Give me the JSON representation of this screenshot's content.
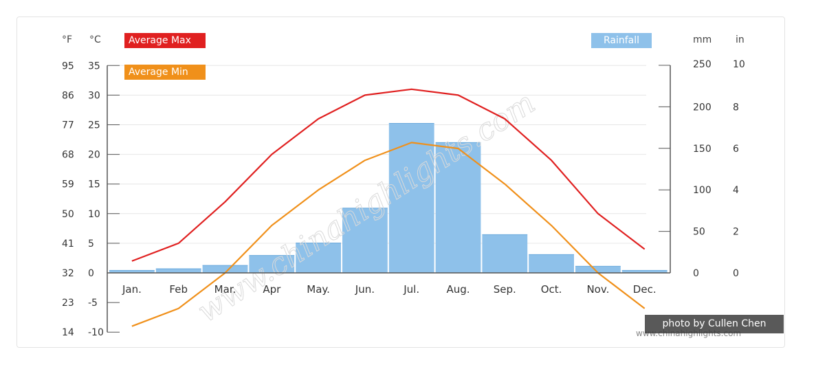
{
  "chart_data": {
    "type": "bar+line",
    "categories": [
      "Jan.",
      "Feb",
      "Mar.",
      "Apr",
      "May.",
      "Jun.",
      "Jul.",
      "Aug.",
      "Sep.",
      "Oct.",
      "Nov.",
      "Dec."
    ],
    "series": [
      {
        "name": "Average Max",
        "type": "line",
        "axis": "celsius",
        "color": "#e02020",
        "values": [
          2,
          5,
          12,
          20,
          26,
          30,
          31,
          30,
          26,
          19,
          10,
          4
        ]
      },
      {
        "name": "Average Min",
        "type": "line",
        "axis": "celsius",
        "color": "#f0901a",
        "values": [
          -9,
          -6,
          0,
          8,
          14,
          19,
          22,
          21,
          15,
          8,
          0,
          -6
        ]
      },
      {
        "name": "Rainfall",
        "type": "bar",
        "axis": "mm",
        "color": "#8ec1ea",
        "values": [
          3,
          5,
          9,
          21,
          36,
          78,
          180,
          157,
          46,
          22,
          8,
          3
        ]
      }
    ],
    "left_axes": {
      "fahrenheit_label": "°F",
      "celsius_label": "°C",
      "fahrenheit_ticks": [
        "95",
        "86",
        "77",
        "68",
        "59",
        "50",
        "41",
        "32",
        "23",
        "14"
      ],
      "celsius_ticks": [
        "35",
        "30",
        "25",
        "20",
        "15",
        "10",
        "5",
        "0",
        "-5",
        "-10"
      ],
      "celsius_range": [
        -10,
        35
      ]
    },
    "right_axes": {
      "mm_label": "mm",
      "in_label": "in",
      "mm_ticks": [
        "250",
        "200",
        "150",
        "100",
        "50",
        "0"
      ],
      "in_ticks": [
        "10",
        "8",
        "6",
        "4",
        "2",
        "0"
      ],
      "mm_range": [
        0,
        250
      ]
    },
    "grid": true,
    "legend": {
      "max_label": "Average Max",
      "min_label": "Average Min",
      "rain_label": "Rainfall"
    }
  },
  "watermark": "www.chinahighlights.com",
  "credit": "photo by Cullen Chen",
  "site_text": "www.chinahighlights.com",
  "colors": {
    "max": "#e02020",
    "min": "#f0901a",
    "rain": "#8ec1ea",
    "grid": "#e6e6e6",
    "axis": "#555555"
  }
}
